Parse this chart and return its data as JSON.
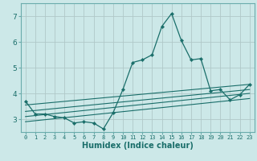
{
  "xlabel": "Humidex (Indice chaleur)",
  "bg_color": "#cce8e8",
  "grid_color": "#b0c8c8",
  "line_color": "#1a6e6a",
  "spine_color": "#6aacac",
  "xlim": [
    -0.5,
    23.5
  ],
  "ylim": [
    2.5,
    7.5
  ],
  "yticks": [
    3,
    4,
    5,
    6,
    7
  ],
  "xticks": [
    0,
    1,
    2,
    3,
    4,
    5,
    6,
    7,
    8,
    9,
    10,
    11,
    12,
    13,
    14,
    15,
    16,
    17,
    18,
    19,
    20,
    21,
    22,
    23
  ],
  "main_line": {
    "x": [
      0,
      1,
      2,
      3,
      4,
      5,
      6,
      7,
      8,
      9,
      10,
      11,
      12,
      13,
      14,
      15,
      16,
      17,
      18,
      19,
      20,
      21,
      22,
      23
    ],
    "y": [
      3.7,
      3.2,
      3.2,
      3.1,
      3.05,
      2.85,
      2.9,
      2.85,
      2.62,
      3.25,
      4.15,
      5.2,
      5.3,
      5.5,
      6.6,
      7.1,
      6.05,
      5.3,
      5.35,
      4.1,
      4.15,
      3.75,
      3.95,
      4.35
    ]
  },
  "straight_lines": [
    {
      "x0": 0,
      "y0": 3.55,
      "x1": 23,
      "y1": 4.35
    },
    {
      "x0": 0,
      "y0": 3.3,
      "x1": 23,
      "y1": 4.15
    },
    {
      "x0": 0,
      "y0": 3.1,
      "x1": 23,
      "y1": 4.0
    },
    {
      "x0": 0,
      "y0": 2.9,
      "x1": 23,
      "y1": 3.8
    }
  ],
  "xlabel_fontsize": 7,
  "tick_fontsize": 5,
  "ytick_fontsize": 6.5
}
